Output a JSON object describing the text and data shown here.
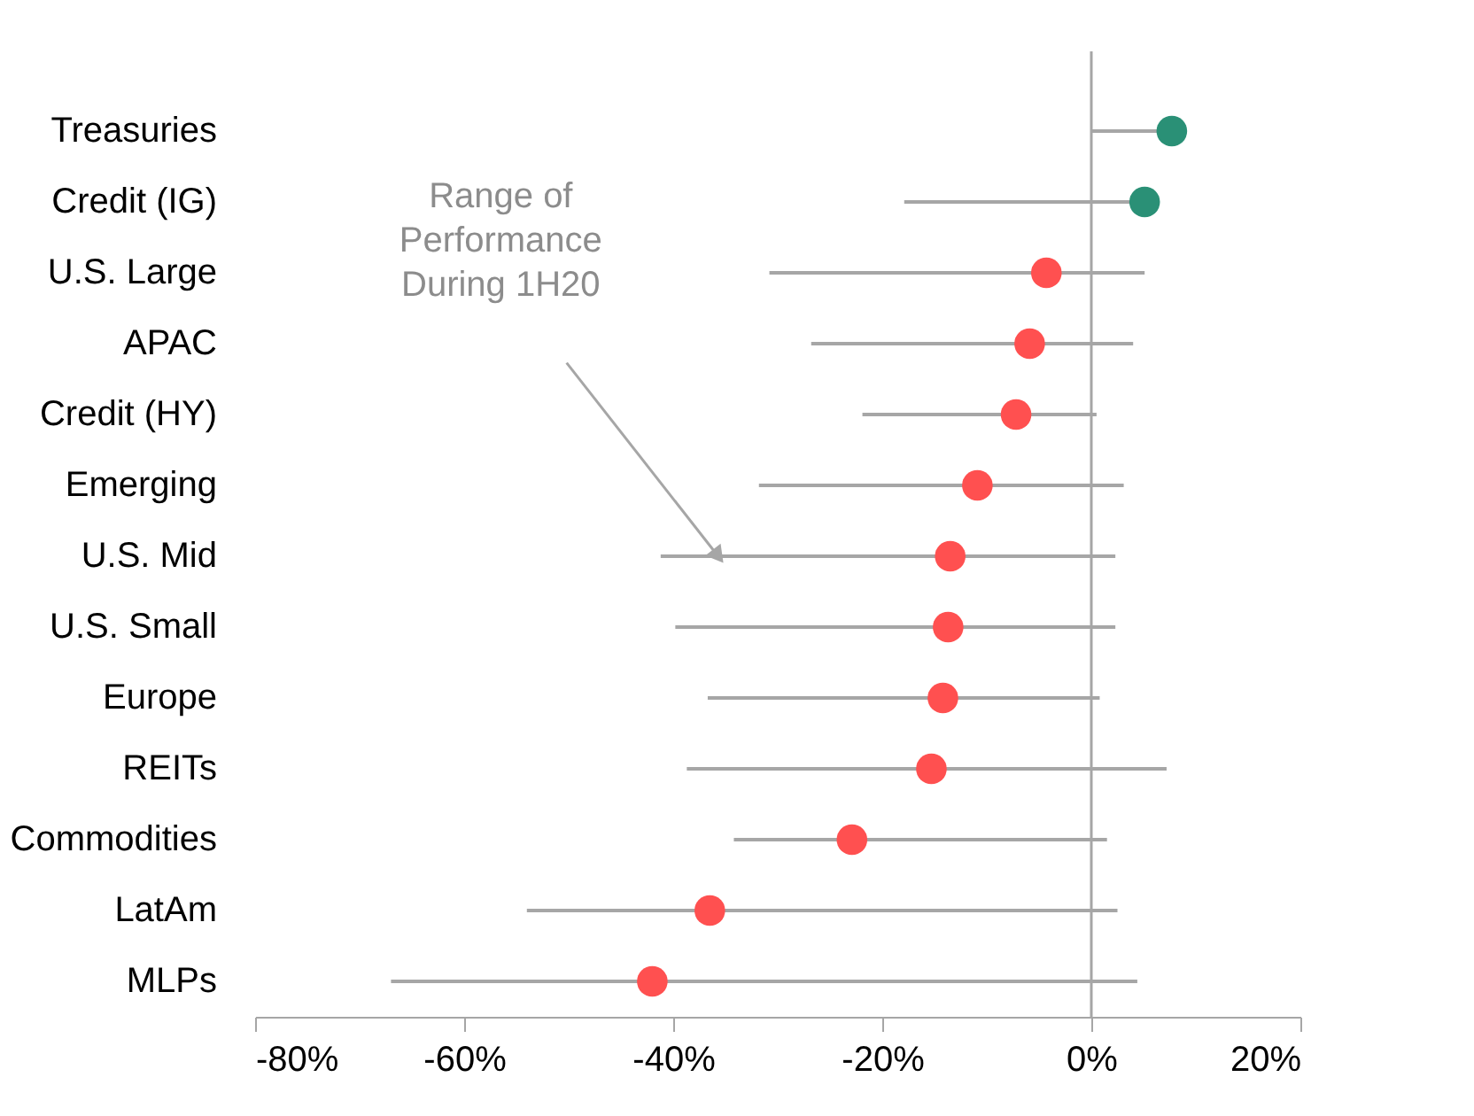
{
  "chart_data": {
    "type": "scatter",
    "orientation": "horizontal",
    "categories": [
      "Treasuries",
      "Credit (IG)",
      "U.S. Large",
      "APAC",
      "Credit (HY)",
      "Emerging",
      "U.S. Mid",
      "U.S. Small",
      "Europe",
      "REITs",
      "Commodities",
      "LatAm",
      "MLPs"
    ],
    "values": [
      7.7,
      5.1,
      -4.3,
      -5.9,
      -7.2,
      -10.9,
      -13.5,
      -13.7,
      -14.2,
      -15.3,
      -22.9,
      -36.5,
      -42.0
    ],
    "errors": [
      [
        0,
        7.7
      ],
      [
        -17.9,
        5.1
      ],
      [
        -30.8,
        5.1
      ],
      [
        -26.8,
        4.0
      ],
      [
        -21.9,
        0.5
      ],
      [
        -31.8,
        3.1
      ],
      [
        -41.2,
        2.3
      ],
      [
        -39.8,
        2.3
      ],
      [
        -36.7,
        0.8
      ],
      [
        -38.7,
        7.2
      ],
      [
        -34.2,
        1.5
      ],
      [
        -54.0,
        2.5
      ],
      [
        -67.0,
        4.4
      ]
    ],
    "colors": [
      "#2a9076",
      "#2a9076",
      "#ff5050",
      "#ff5050",
      "#ff5050",
      "#ff5050",
      "#ff5050",
      "#ff5050",
      "#ff5050",
      "#ff5050",
      "#ff5050",
      "#ff5050",
      "#ff5050"
    ],
    "xlim": [
      -80,
      20
    ],
    "xticks": [
      {
        "value": -80,
        "label": "-80%"
      },
      {
        "value": -60,
        "label": "-60%"
      },
      {
        "value": -40,
        "label": "-40%"
      },
      {
        "value": -20,
        "label": "-20%"
      },
      {
        "value": 0,
        "label": "0%"
      },
      {
        "value": 20,
        "label": "20%"
      }
    ],
    "ref_lines": [
      {
        "axis": "x",
        "value": 0,
        "color": "#a6a6a6"
      }
    ],
    "annotations": [
      "Range of\nPerformance\nDuring 1H20"
    ],
    "marker": "circle",
    "grid": false,
    "legend": false
  }
}
